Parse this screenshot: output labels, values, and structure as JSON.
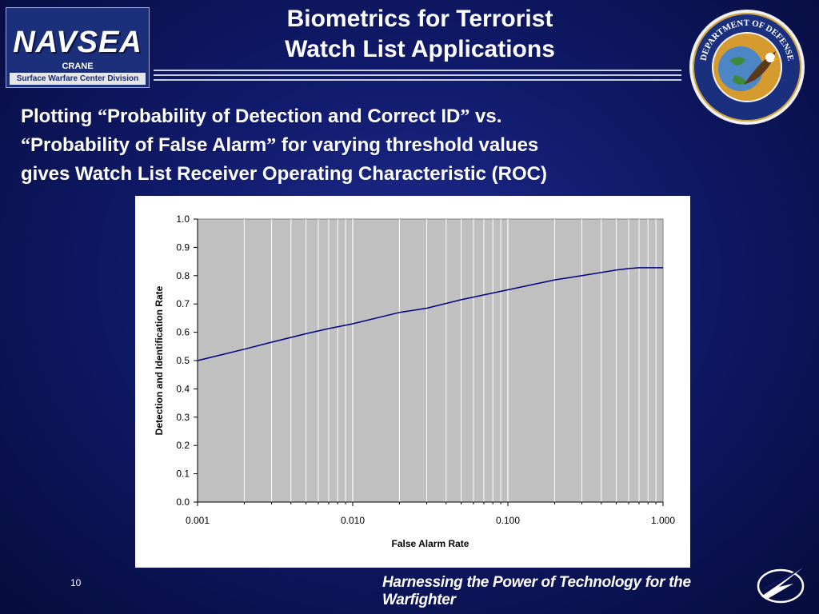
{
  "header": {
    "logo": {
      "name": "NAVSEA",
      "location": "CRANE",
      "division": "Surface Warfare Center Division"
    },
    "title_line1": "Biometrics for Terrorist",
    "title_line2": "Watch List Applications",
    "seal": {
      "text": "DEPARTMENT OF DEFENSE",
      "icon": "eagle-globe-seal-icon"
    }
  },
  "subtitle": {
    "t1": "Plotting ",
    "q1": "“",
    "t2": "Probability of Detection and Correct ID",
    "q2": "”",
    "t3": " vs.",
    "q3": "“",
    "t4": "Probability of False Alarm",
    "q4": "”",
    "t5": " for varying threshold values",
    "line3": "gives Watch List Receiver Operating Characteristic (ROC)"
  },
  "chart_data": {
    "type": "line",
    "title": "",
    "xlabel": "False Alarm Rate",
    "ylabel": "Detection and Identification Rate",
    "xscale": "log",
    "xlim": [
      0.001,
      1.0
    ],
    "ylim": [
      0.0,
      1.0
    ],
    "x_ticks": [
      "0.001",
      "0.010",
      "0.100",
      "1.000"
    ],
    "y_ticks": [
      "0.0",
      "0.1",
      "0.2",
      "0.3",
      "0.4",
      "0.5",
      "0.6",
      "0.7",
      "0.8",
      "0.9",
      "1.0"
    ],
    "grid": true,
    "legend": "none",
    "plot_background": "#c0c0c0",
    "series": [
      {
        "color": "#000080",
        "x": [
          0.001,
          0.002,
          0.003,
          0.005,
          0.007,
          0.01,
          0.02,
          0.03,
          0.05,
          0.07,
          0.1,
          0.2,
          0.3,
          0.5,
          0.6,
          0.7,
          1.0
        ],
        "y": [
          0.5,
          0.54,
          0.565,
          0.595,
          0.613,
          0.63,
          0.67,
          0.685,
          0.715,
          0.732,
          0.75,
          0.785,
          0.8,
          0.82,
          0.825,
          0.828,
          0.828
        ]
      }
    ]
  },
  "footer": {
    "page_number": "10",
    "tagline": "Harnessing the Power of Technology for the Warfighter",
    "logo_icon": "wing-logo-icon"
  },
  "colors": {
    "background": "#101a6a",
    "text": "#ffffff",
    "line": "#000080"
  }
}
